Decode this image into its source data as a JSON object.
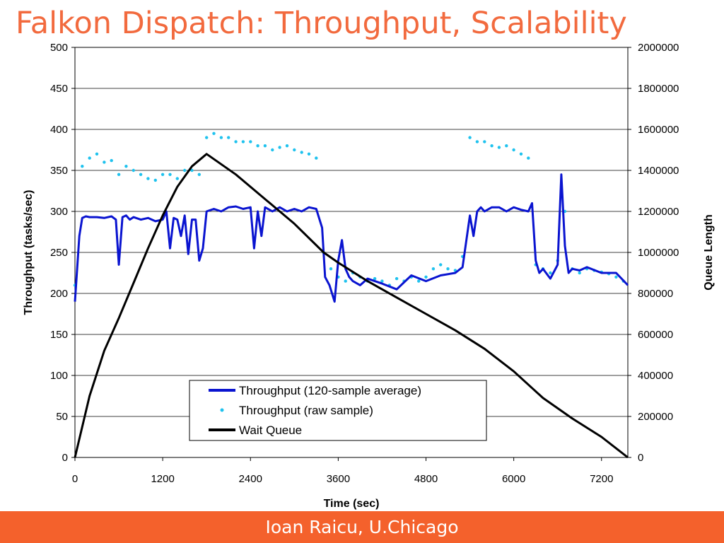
{
  "slide": {
    "title": "Falkon Dispatch: Throughput, Scalability",
    "footer": "Ioan Raicu, U.Chicago"
  },
  "colors": {
    "title": "#f26a3e",
    "footer_bg": "#f4612c",
    "avg_line": "#0a14d0",
    "raw_points": "#1fc2ee",
    "wait_queue": "#000000",
    "gridline": "#000000"
  },
  "chart_data": {
    "type": "line",
    "title": "",
    "xlabel": "Time (sec)",
    "ylabel": "Throughput (tasks/sec)",
    "y2label": "Queue Length",
    "xlim": [
      0,
      7560
    ],
    "ylim": [
      0,
      500
    ],
    "y2lim": [
      0,
      2000000
    ],
    "xticks": [
      0,
      1200,
      2400,
      3600,
      4800,
      6000,
      7200
    ],
    "yticks": [
      0,
      50,
      100,
      150,
      200,
      250,
      300,
      350,
      400,
      450,
      500
    ],
    "y2ticks": [
      0,
      200000,
      400000,
      600000,
      800000,
      1000000,
      1200000,
      1400000,
      1600000,
      1800000,
      2000000
    ],
    "grid": "horizontal",
    "legend_position": "bottom-center",
    "series": [
      {
        "name": "Throughput (120-sample average)",
        "style": "line",
        "axis": "left",
        "color": "#0a14d0",
        "x": [
          0,
          60,
          100,
          150,
          200,
          300,
          400,
          500,
          560,
          600,
          650,
          700,
          750,
          800,
          900,
          1000,
          1100,
          1200,
          1250,
          1300,
          1350,
          1400,
          1450,
          1500,
          1550,
          1600,
          1650,
          1700,
          1750,
          1800,
          1900,
          2000,
          2100,
          2200,
          2300,
          2400,
          2450,
          2500,
          2550,
          2600,
          2700,
          2800,
          2900,
          3000,
          3100,
          3200,
          3300,
          3380,
          3420,
          3480,
          3550,
          3600,
          3650,
          3700,
          3750,
          3800,
          3900,
          4000,
          4200,
          4400,
          4600,
          4800,
          5000,
          5200,
          5300,
          5400,
          5450,
          5500,
          5550,
          5600,
          5700,
          5800,
          5900,
          6000,
          6100,
          6200,
          6250,
          6300,
          6350,
          6400,
          6500,
          6600,
          6650,
          6700,
          6750,
          6800,
          6900,
          7000,
          7200,
          7400,
          7560
        ],
        "values": [
          190,
          270,
          292,
          294,
          293,
          293,
          292,
          294,
          290,
          235,
          293,
          295,
          290,
          293,
          290,
          292,
          288,
          290,
          300,
          255,
          292,
          290,
          270,
          295,
          248,
          290,
          290,
          240,
          255,
          300,
          303,
          300,
          305,
          306,
          303,
          305,
          255,
          300,
          270,
          305,
          300,
          305,
          300,
          303,
          300,
          305,
          303,
          280,
          220,
          210,
          190,
          240,
          265,
          230,
          220,
          215,
          210,
          218,
          212,
          205,
          222,
          215,
          222,
          225,
          232,
          295,
          270,
          300,
          305,
          300,
          305,
          305,
          300,
          305,
          302,
          300,
          310,
          240,
          225,
          230,
          218,
          235,
          345,
          258,
          225,
          230,
          228,
          232,
          225,
          225,
          210
        ]
      },
      {
        "name": "Throughput (raw sample)",
        "style": "scatter",
        "axis": "left",
        "color": "#1fc2ee",
        "x": [
          0,
          100,
          200,
          300,
          400,
          500,
          600,
          700,
          800,
          900,
          1000,
          1100,
          1200,
          1300,
          1400,
          1500,
          1600,
          1700,
          1800,
          1900,
          2000,
          2100,
          2200,
          2300,
          2400,
          2500,
          2600,
          2700,
          2800,
          2900,
          3000,
          3100,
          3200,
          3300,
          3400,
          3500,
          3600,
          3700,
          3800,
          3900,
          4000,
          4100,
          4200,
          4300,
          4400,
          4500,
          4600,
          4700,
          4800,
          4900,
          5000,
          5100,
          5200,
          5300,
          5400,
          5500,
          5600,
          5700,
          5800,
          5900,
          6000,
          6100,
          6200,
          6300,
          6400,
          6500,
          6600,
          6700,
          6800,
          6900,
          7000,
          7100,
          7200,
          7300,
          7400,
          7500
        ],
        "values": [
          210,
          355,
          365,
          370,
          360,
          362,
          345,
          355,
          350,
          345,
          340,
          338,
          345,
          345,
          340,
          350,
          350,
          345,
          390,
          395,
          390,
          390,
          385,
          385,
          385,
          380,
          380,
          375,
          378,
          380,
          375,
          372,
          370,
          365,
          250,
          230,
          220,
          215,
          225,
          220,
          215,
          218,
          215,
          210,
          218,
          215,
          220,
          215,
          220,
          230,
          235,
          230,
          228,
          245,
          390,
          385,
          385,
          380,
          378,
          380,
          375,
          370,
          365,
          235,
          230,
          225,
          240,
          300,
          230,
          225,
          230,
          228,
          226,
          224,
          220,
          215
        ]
      },
      {
        "name": "Wait Queue",
        "style": "line",
        "axis": "right",
        "color": "#000000",
        "x": [
          0,
          200,
          400,
          600,
          800,
          1000,
          1200,
          1400,
          1600,
          1800,
          2200,
          2600,
          3000,
          3400,
          3600,
          4000,
          4400,
          4800,
          5200,
          5600,
          6000,
          6400,
          6800,
          7200,
          7560
        ],
        "values": [
          0,
          300000,
          520000,
          680000,
          850000,
          1020000,
          1180000,
          1320000,
          1420000,
          1480000,
          1380000,
          1260000,
          1140000,
          1000000,
          950000,
          860000,
          780000,
          700000,
          620000,
          530000,
          420000,
          290000,
          190000,
          100000,
          0
        ]
      }
    ]
  }
}
